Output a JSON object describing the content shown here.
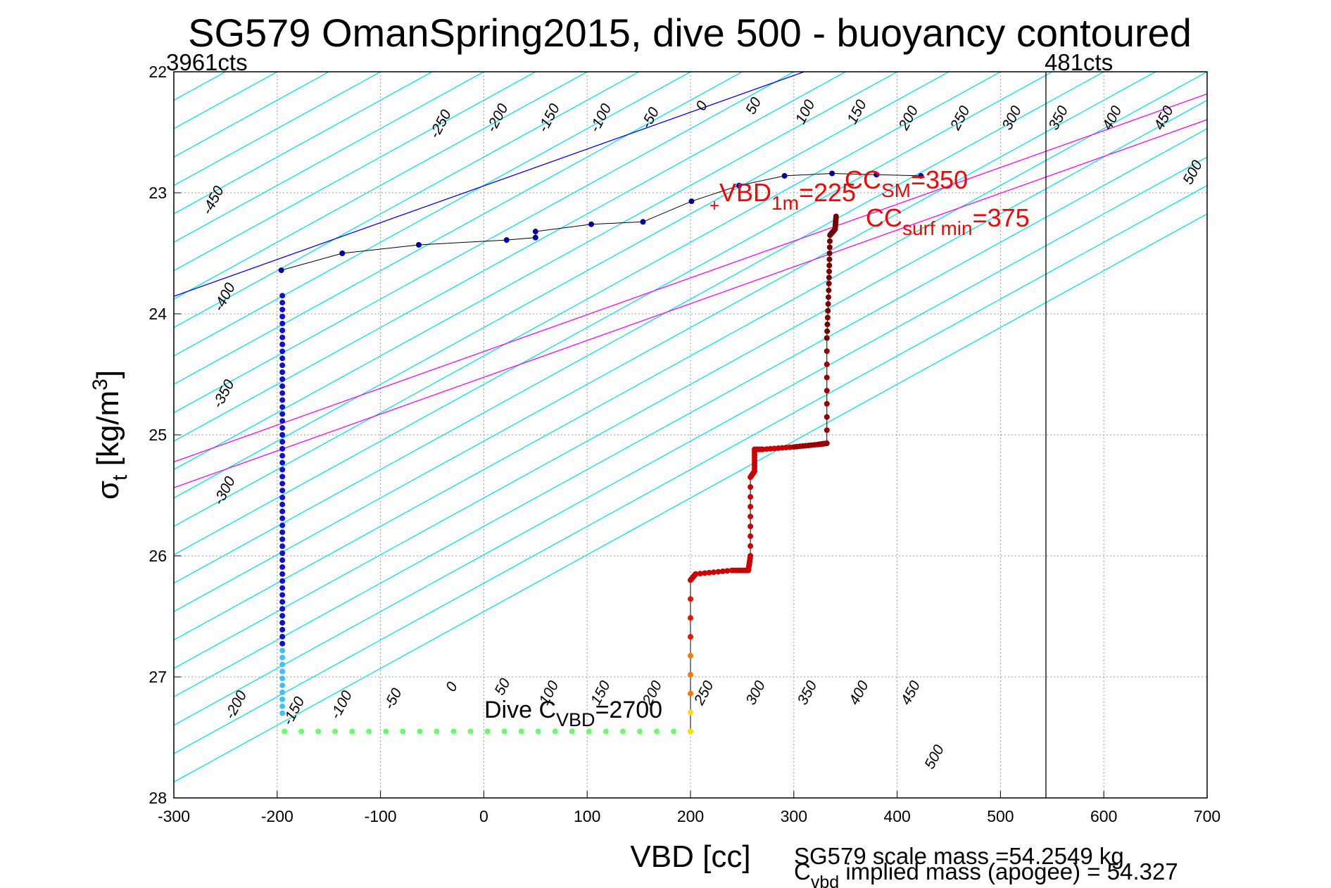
{
  "chart_data": {
    "type": "scatter",
    "title": "SG579 OmanSpring2015, dive 500 - buoyancy contoured",
    "xlabel": "VBD [cc]",
    "ylabel": {
      "base": "σ",
      "sub": "t",
      "units": " [kg/m",
      "sup": "3",
      "close": "]"
    },
    "xlim": [
      -300,
      700
    ],
    "ylim": [
      22,
      28
    ],
    "y_reversed": true,
    "grid": true,
    "xticks": [
      -300,
      -200,
      -100,
      0,
      100,
      200,
      300,
      400,
      500,
      600,
      700
    ],
    "yticks": [
      22,
      23,
      24,
      25,
      26,
      27,
      28
    ],
    "xtick_labels": [
      "-300",
      "-200",
      "-100",
      "0",
      "100",
      "200",
      "300",
      "400",
      "500",
      "600",
      "700"
    ],
    "ytick_labels": [
      "22",
      "23",
      "24",
      "25",
      "26",
      "27",
      "28"
    ],
    "contour_slope_cc_per_unit": -213,
    "contour_levels": [
      -500,
      -450,
      -400,
      -350,
      -300,
      -250,
      -200,
      -150,
      -100,
      -50,
      0,
      50,
      100,
      150,
      200,
      250,
      300,
      350,
      400,
      450,
      500,
      550,
      600,
      650,
      700,
      750,
      800,
      850,
      900,
      950
    ],
    "top_labels": [
      {
        "text": "-450",
        "x": -258,
        "y": 23.08
      },
      {
        "text": "-400",
        "x": -247,
        "y": 23.88
      },
      {
        "text": "-350",
        "x": -248,
        "y": 24.68
      },
      {
        "text": "-300",
        "x": -247,
        "y": 25.48
      },
      {
        "text": "-250",
        "x": -38,
        "y": 22.45
      },
      {
        "text": "-200",
        "x": 17,
        "y": 22.4
      },
      {
        "text": "-150",
        "x": 67,
        "y": 22.4
      },
      {
        "text": "-100",
        "x": 117,
        "y": 22.4
      },
      {
        "text": "-50",
        "x": 165,
        "y": 22.4
      },
      {
        "text": "0",
        "x": 215,
        "y": 22.3
      },
      {
        "text": "50",
        "x": 265,
        "y": 22.3
      },
      {
        "text": "100",
        "x": 315,
        "y": 22.35
      },
      {
        "text": "150",
        "x": 365,
        "y": 22.35
      },
      {
        "text": "200",
        "x": 415,
        "y": 22.4
      },
      {
        "text": "250",
        "x": 465,
        "y": 22.4
      },
      {
        "text": "300",
        "x": 515,
        "y": 22.4
      },
      {
        "text": "350",
        "x": 560,
        "y": 22.4
      },
      {
        "text": "400",
        "x": 612,
        "y": 22.4
      },
      {
        "text": "450",
        "x": 662,
        "y": 22.4
      },
      {
        "text": "500",
        "x": 690,
        "y": 22.85
      }
    ],
    "bottom_labels": [
      {
        "text": "-200",
        "x": -236,
        "y": 27.25
      },
      {
        "text": "-150",
        "x": -180,
        "y": 27.3
      },
      {
        "text": "-100",
        "x": -134,
        "y": 27.25
      },
      {
        "text": "-50",
        "x": -84,
        "y": 27.2
      },
      {
        "text": "0",
        "x": -27,
        "y": 27.1
      },
      {
        "text": "50",
        "x": 22,
        "y": 27.1
      },
      {
        "text": "100",
        "x": 67,
        "y": 27.15
      },
      {
        "text": "150",
        "x": 117,
        "y": 27.15
      },
      {
        "text": "200",
        "x": 167,
        "y": 27.15
      },
      {
        "text": "250",
        "x": 217,
        "y": 27.15
      },
      {
        "text": "300",
        "x": 267,
        "y": 27.15
      },
      {
        "text": "350",
        "x": 317,
        "y": 27.15
      },
      {
        "text": "400",
        "x": 367,
        "y": 27.15
      },
      {
        "text": "450",
        "x": 417,
        "y": 27.15
      },
      {
        "text": "500",
        "x": 440,
        "y": 27.68
      }
    ],
    "special_lines": [
      {
        "level": 0,
        "color": "#0000ff"
      },
      {
        "level": 350,
        "color": "#ff00ff"
      },
      {
        "level": 375,
        "color": "#ff00ff"
      }
    ],
    "vertical_line_x": 544,
    "climb_profile": [
      [
        -196,
        23.64
      ],
      [
        -137,
        23.5
      ],
      [
        -63,
        23.43
      ],
      [
        22,
        23.39
      ],
      [
        50,
        23.37
      ],
      [
        50,
        23.32
      ],
      [
        104,
        23.26
      ],
      [
        154,
        23.24
      ],
      [
        201,
        23.07
      ],
      [
        247,
        22.94
      ],
      [
        291,
        22.86
      ],
      [
        337,
        22.84
      ],
      [
        380,
        22.85
      ],
      [
        423,
        22.86
      ]
    ],
    "climb_vertical": {
      "x": -195,
      "y_top": 23.85,
      "y_bottom": 27.3
    },
    "climb_color": "#0000a0",
    "dive_horizontal": {
      "y": 27.45,
      "x_start": -193,
      "x_end": 200,
      "color": "#66ff66"
    },
    "dive_profile": [
      [
        200,
        27.45
      ],
      [
        200,
        26.2
      ],
      [
        205,
        26.15
      ],
      [
        240,
        26.12
      ],
      [
        256,
        26.12
      ],
      [
        258,
        26.0
      ],
      [
        258,
        25.35
      ],
      [
        262,
        25.3
      ],
      [
        262,
        25.12
      ],
      [
        270,
        25.12
      ],
      [
        300,
        25.1
      ],
      [
        323,
        25.08
      ],
      [
        332,
        25.07
      ],
      [
        332,
        24.2
      ],
      [
        334,
        23.75
      ],
      [
        335,
        23.35
      ],
      [
        340,
        23.3
      ],
      [
        341,
        23.18
      ]
    ],
    "annotations": {
      "left_counts": "3961cts",
      "right_counts": "481cts",
      "vbd1m_main": "VBD",
      "vbd1m_sub": "1m",
      "vbd1m_val": "=225",
      "ccsm_main": "CC",
      "ccsm_sub": "SM",
      "ccsm_val": "=350",
      "ccsurf_main": "CC",
      "ccsurf_sub": "surf min",
      "ccsurf_val": "=375",
      "dive_cvbd_main": "Dive C",
      "dive_cvbd_sub": "VBD",
      "dive_cvbd_val": "=2700",
      "scale_mass": "SG579 scale mass =54.2549 kg",
      "implied_main": "C",
      "implied_sub": "vbd",
      "implied_rest": " implied mass (apogee) = 54.327"
    },
    "colors": {
      "text_red": "#ff0000",
      "contour": "#00e5ee",
      "grid": "#999999"
    }
  }
}
